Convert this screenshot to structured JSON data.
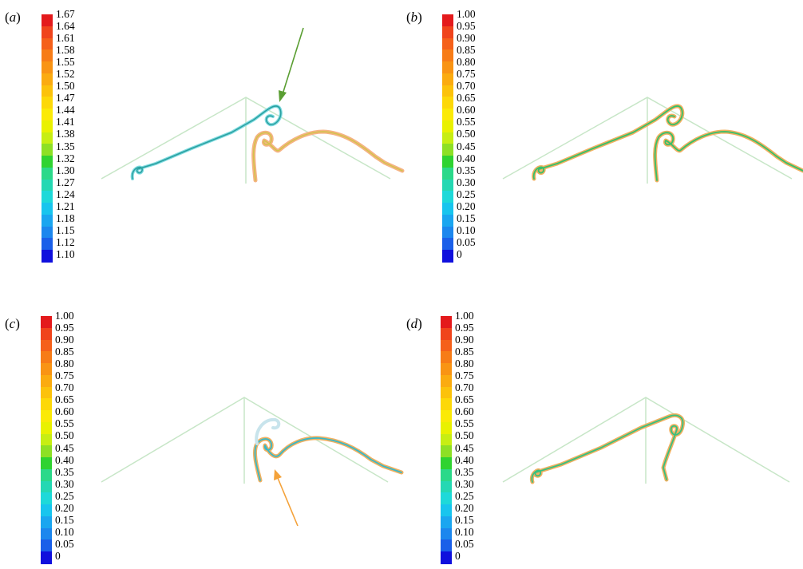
{
  "panels": [
    {
      "label": "a",
      "ticks": [
        "1.67",
        "1.64",
        "1.61",
        "1.58",
        "1.55",
        "1.52",
        "1.50",
        "1.47",
        "1.44",
        "1.41",
        "1.38",
        "1.35",
        "1.32",
        "1.30",
        "1.27",
        "1.24",
        "1.21",
        "1.18",
        "1.15",
        "1.12",
        "1.10"
      ]
    },
    {
      "label": "b",
      "ticks": [
        "1.00",
        "0.95",
        "0.90",
        "0.85",
        "0.80",
        "0.75",
        "0.70",
        "0.65",
        "0.60",
        "0.55",
        "0.50",
        "0.45",
        "0.40",
        "0.35",
        "0.30",
        "0.25",
        "0.20",
        "0.15",
        "0.10",
        "0.05",
        "0"
      ]
    },
    {
      "label": "c",
      "ticks": [
        "1.00",
        "0.95",
        "0.90",
        "0.85",
        "0.80",
        "0.75",
        "0.70",
        "0.65",
        "0.60",
        "0.55",
        "0.50",
        "0.45",
        "0.40",
        "0.35",
        "0.30",
        "0.25",
        "0.20",
        "0.15",
        "0.10",
        "0.05",
        "0"
      ]
    },
    {
      "label": "d",
      "ticks": [
        "1.00",
        "0.95",
        "0.90",
        "0.85",
        "0.80",
        "0.75",
        "0.70",
        "0.65",
        "0.60",
        "0.55",
        "0.50",
        "0.45",
        "0.40",
        "0.35",
        "0.30",
        "0.25",
        "0.20",
        "0.15",
        "0.10",
        "0.05",
        "0"
      ]
    }
  ],
  "colormap": [
    "#e41a1c",
    "#f0441c",
    "#f5601a",
    "#f77c17",
    "#f99414",
    "#fbab10",
    "#fcc20b",
    "#fdd808",
    "#fbea06",
    "#e9f100",
    "#c7ee13",
    "#8ee025",
    "#2fd331",
    "#2bd98a",
    "#25d8b3",
    "#1ed9d9",
    "#18c5ee",
    "#1aa6f0",
    "#1c87ee",
    "#1a5fe9",
    "#1010dd"
  ],
  "arrow_colors": {
    "a": "#5a9e32",
    "c": "#f4a23a"
  }
}
